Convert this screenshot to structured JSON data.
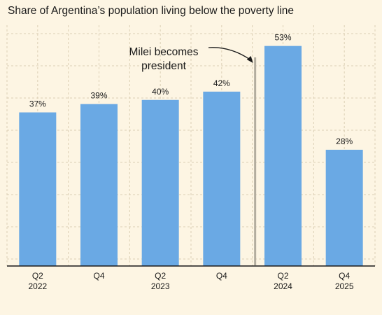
{
  "chart_data": {
    "type": "bar",
    "title": "Share of Argentina’s population living below the poverty line",
    "categories": [
      "Q2\n2022",
      "Q4",
      "Q2\n2023",
      "Q4",
      "Q2\n2024",
      "Q4\n2025"
    ],
    "values": [
      37,
      39,
      40,
      42,
      53,
      28
    ],
    "value_labels": [
      "37%",
      "39%",
      "40%",
      "42%",
      "53%",
      "28%"
    ],
    "ylim": [
      0,
      58
    ],
    "grid": true,
    "annotation": {
      "text_line1": "Milei becomes",
      "text_line2": "president",
      "after_category_index": 3
    },
    "colors": {
      "bar": "#6aa9e4",
      "background": "#fdf5e3",
      "grid": "#dccfb4",
      "marker_line": "#b3ad9f",
      "axis": "#1a1a1a"
    }
  }
}
